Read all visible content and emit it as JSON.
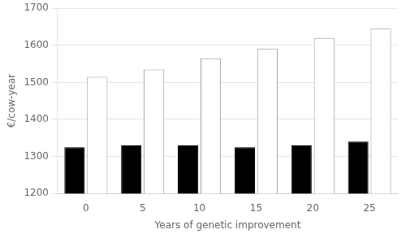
{
  "chart_data": {
    "type": "bar",
    "categories": [
      0,
      5,
      10,
      15,
      20,
      25
    ],
    "series": [
      {
        "color": "#000000",
        "values": [
          1325,
          1330,
          1330,
          1325,
          1330,
          1340
        ]
      },
      {
        "color": "#ffffff",
        "values": [
          1515,
          1535,
          1565,
          1590,
          1620,
          1645
        ]
      }
    ],
    "xlabel": "Years of genetic improvement",
    "ylabel": "€/cow-year",
    "ylim": [
      1200,
      1700
    ],
    "yticks": [
      1200,
      1300,
      1400,
      1500,
      1600,
      1700
    ],
    "grid": true
  }
}
